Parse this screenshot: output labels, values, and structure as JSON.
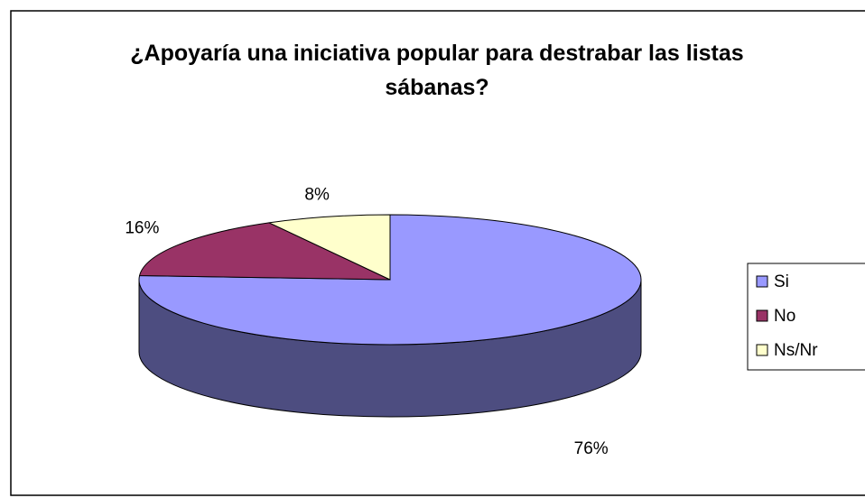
{
  "chart_data": {
    "type": "pie",
    "title": "¿Apoyaría una iniciativa popular para destrabar las listas sábanas?",
    "categories": [
      "Si",
      "No",
      "Ns/Nr"
    ],
    "values": [
      76,
      16,
      8
    ],
    "value_labels": [
      "76%",
      "16%",
      "8%"
    ],
    "colors": [
      "#9999ff",
      "#993366",
      "#ffffcc"
    ],
    "side_colors": [
      "#4d4d80",
      "#4d1a33",
      "#808066"
    ],
    "legend": "right"
  }
}
